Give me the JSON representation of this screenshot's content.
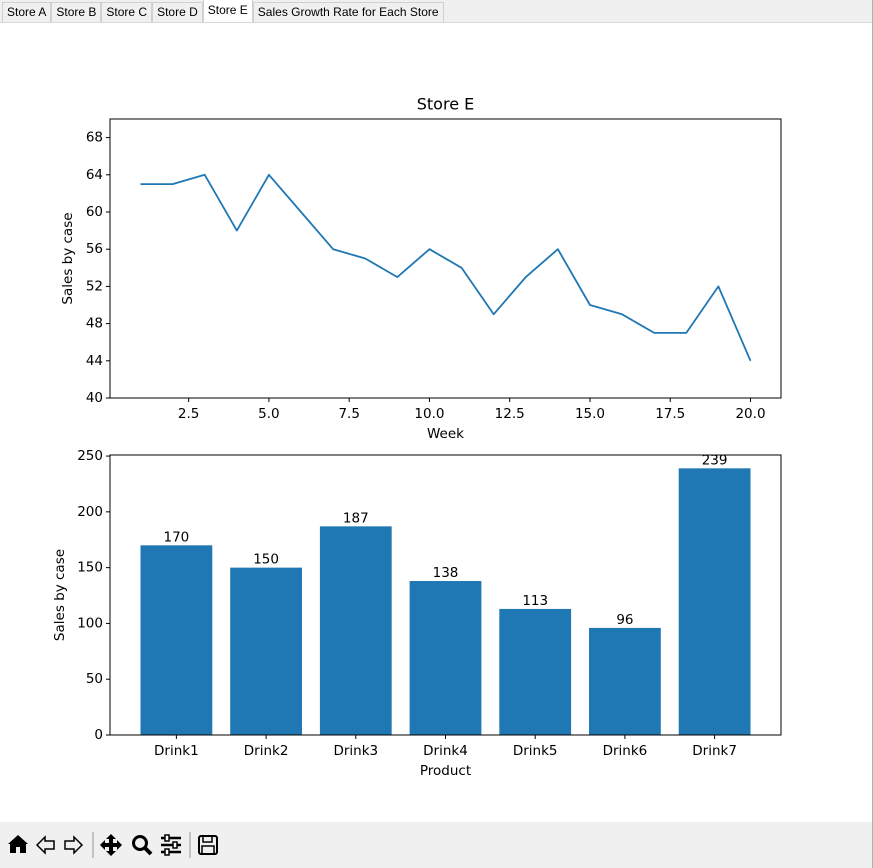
{
  "tabs": [
    "Store A",
    "Store B",
    "Store C",
    "Store D",
    "Store E",
    "Sales Growth Rate for Each Store"
  ],
  "chart_data": [
    {
      "type": "line",
      "title": "Store E",
      "xlabel": "Week",
      "ylabel": "Sales by case",
      "x": [
        1,
        2,
        3,
        4,
        5,
        6,
        7,
        8,
        9,
        10,
        11,
        12,
        13,
        14,
        15,
        16,
        17,
        18,
        19,
        20
      ],
      "series": [
        {
          "color": "#1f77b4",
          "values": [
            63,
            63,
            64,
            58,
            64,
            60,
            56,
            55,
            53,
            56,
            54,
            49,
            53,
            56,
            50,
            49,
            47,
            47,
            52,
            44
          ]
        }
      ],
      "xlim": [
        0.05,
        20.95
      ],
      "xticks": [
        2.5,
        {
          "value": 5,
          "label": "5.0"
        },
        7.5,
        {
          "value": 10,
          "label": "10.0"
        },
        12.5,
        {
          "value": 15,
          "label": "15.0"
        },
        17.5,
        {
          "value": 20,
          "label": "20.0"
        }
      ],
      "ylim": [
        40,
        70
      ],
      "yticks": [
        40,
        44,
        48,
        52,
        56,
        60,
        64,
        68
      ]
    },
    {
      "type": "bar",
      "xlabel": "Product",
      "ylabel": "Sales by case",
      "categories": [
        "Drink1",
        "Drink2",
        "Drink3",
        "Drink4",
        "Drink5",
        "Drink6",
        "Drink7"
      ],
      "values": [
        170,
        150,
        187,
        138,
        113,
        96,
        239
      ],
      "color": "#1f77b4",
      "ylim": [
        0,
        250.95
      ],
      "yticks": [
        0,
        50,
        100,
        150,
        200,
        250
      ]
    }
  ]
}
